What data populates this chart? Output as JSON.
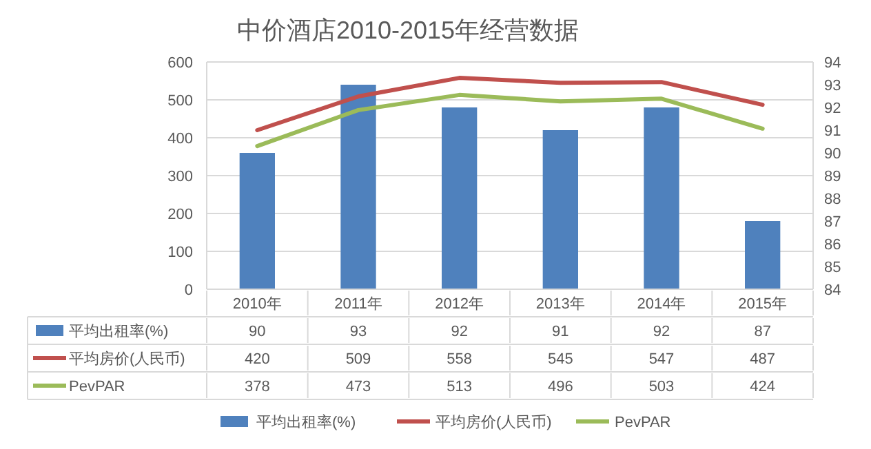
{
  "chart_data": {
    "type": "bar",
    "title": "中价酒店2010-2015年经营数据",
    "categories": [
      "2010年",
      "2011年",
      "2012年",
      "2013年",
      "2014年",
      "2015年"
    ],
    "series": [
      {
        "name": "平均出租率(%)",
        "axis": "y2",
        "color": "#4f81bd",
        "values": [
          90,
          93,
          92,
          91,
          92,
          87
        ]
      },
      {
        "name": "平均房价(人民币)",
        "type": "line",
        "color": "#c0504d",
        "values": [
          420,
          509,
          558,
          545,
          547,
          487
        ]
      },
      {
        "name": "PevPAR",
        "type": "line",
        "color": "#9bbb59",
        "values": [
          378,
          473,
          513,
          496,
          503,
          424
        ]
      }
    ],
    "ylim": [
      0,
      600
    ],
    "yticks": [
      0,
      100,
      200,
      300,
      400,
      500,
      600
    ],
    "y2lim": [
      84,
      94
    ],
    "y2ticks": [
      84,
      85,
      86,
      87,
      88,
      89,
      90,
      91,
      92,
      93,
      94
    ],
    "grid": "y",
    "legend": "bottom",
    "data_labels": true,
    "marker": "none",
    "line_style": "solid"
  }
}
